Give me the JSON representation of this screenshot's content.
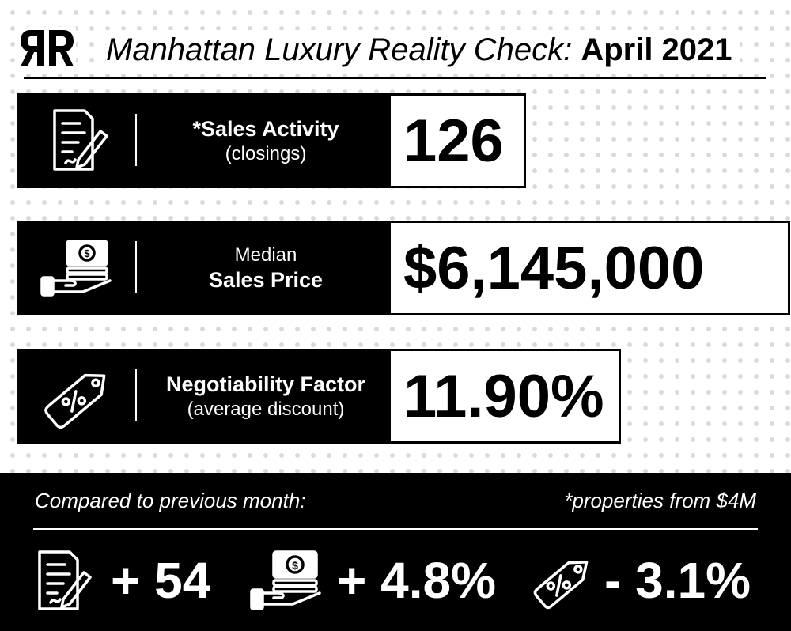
{
  "header": {
    "logo_text": "RR",
    "title_italic": "Manhattan Luxury Reality Check:",
    "title_bold": "April 2021"
  },
  "stats": [
    {
      "icon": "contract-signing-icon",
      "label_line1": "*Sales Activity",
      "label_line2": "(closings)",
      "value": "126"
    },
    {
      "icon": "money-hand-icon",
      "label_line1": "Median",
      "label_line2": "Sales Price",
      "value": "$6,145,000"
    },
    {
      "icon": "discount-tag-icon",
      "label_line1": "Negotiability Factor",
      "label_line2": "(average discount)",
      "value": "11.90%"
    }
  ],
  "footer": {
    "compare_label": "Compared to previous month:",
    "footnote": "*properties from $4M",
    "changes": [
      {
        "icon": "contract-signing-icon",
        "value": "+ 54"
      },
      {
        "icon": "money-hand-icon",
        "value": "+ 4.8%"
      },
      {
        "icon": "discount-tag-icon",
        "value": "- 3.1%"
      }
    ]
  },
  "colors": {
    "primary": "#000000",
    "background": "#ffffff",
    "dots": "#d9d9d9"
  }
}
